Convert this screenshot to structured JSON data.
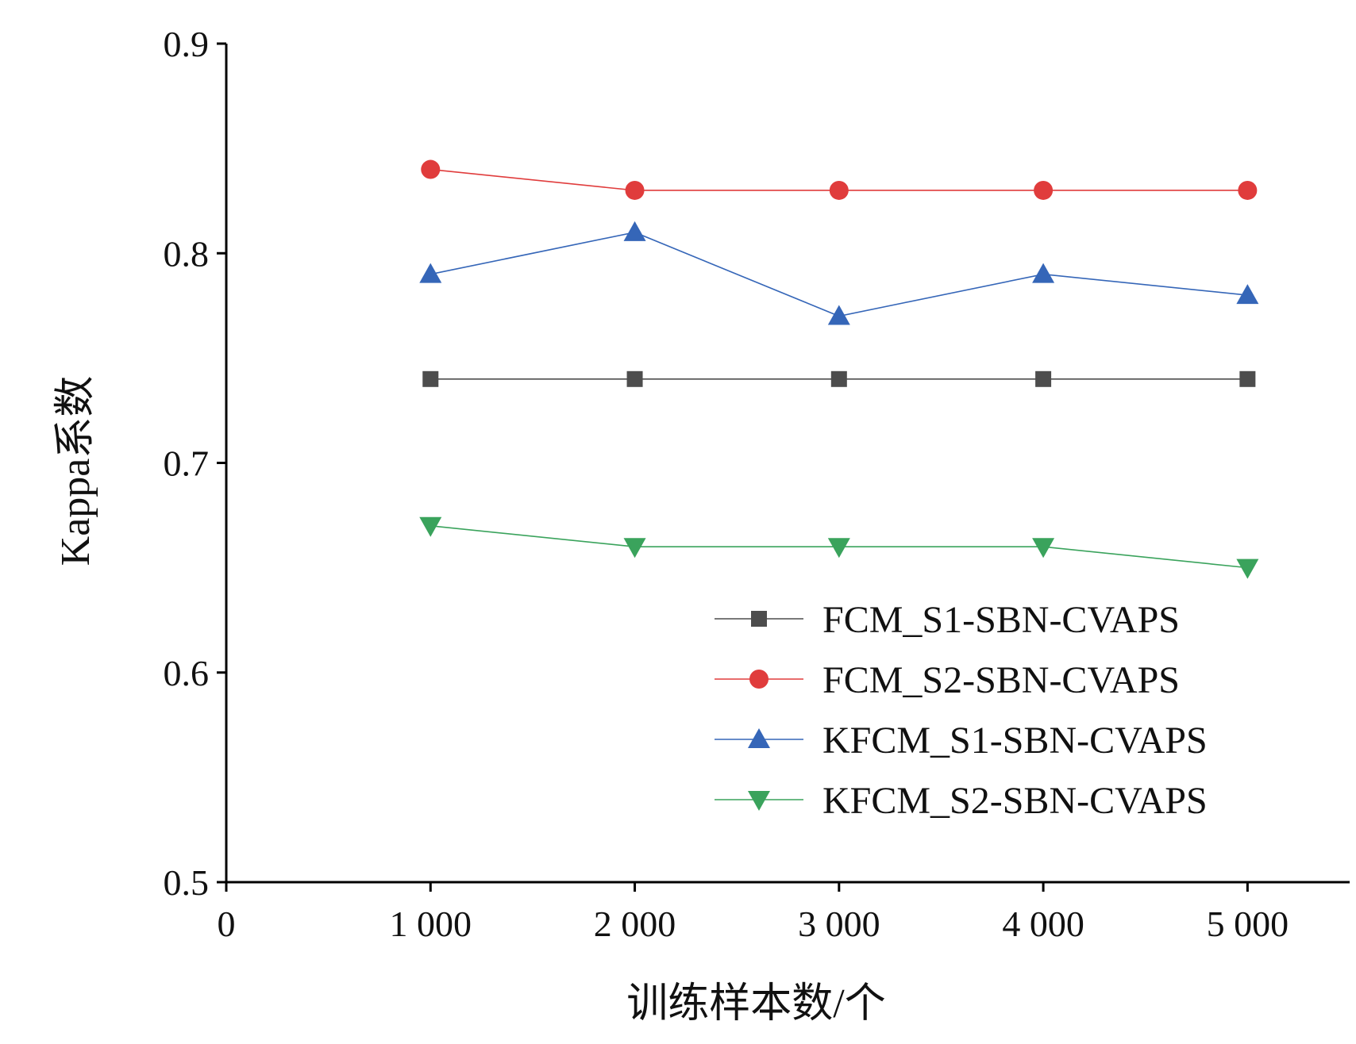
{
  "chart_data": {
    "type": "line",
    "title": "",
    "xlabel": "训练样本数/个",
    "ylabel": "Kappa系数",
    "xlim": [
      0,
      5500
    ],
    "ylim": [
      0.5,
      0.9
    ],
    "x": [
      1000,
      2000,
      3000,
      4000,
      5000
    ],
    "x_tick_values": [
      0,
      1000,
      2000,
      3000,
      4000,
      5000
    ],
    "x_tick_labels": [
      "0",
      "1 000",
      "2 000",
      "3 000",
      "4 000",
      "5 000"
    ],
    "y_tick_values": [
      0.5,
      0.6,
      0.7,
      0.8,
      0.9
    ],
    "y_tick_labels": [
      "0.5",
      "0.6",
      "0.7",
      "0.8",
      "0.9"
    ],
    "grid": false,
    "legend_position": "lower-right",
    "series": [
      {
        "name": "FCM_S1-SBN-CVAPS",
        "values": [
          0.74,
          0.74,
          0.74,
          0.74,
          0.74
        ],
        "color": "#4d4d4d",
        "marker": "square"
      },
      {
        "name": "FCM_S2-SBN-CVAPS",
        "values": [
          0.84,
          0.83,
          0.83,
          0.83,
          0.83
        ],
        "color": "#e03c3c",
        "marker": "circle"
      },
      {
        "name": "KFCM_S1-SBN-CVAPS",
        "values": [
          0.79,
          0.81,
          0.77,
          0.79,
          0.78
        ],
        "color": "#3566b8",
        "marker": "triangle-up"
      },
      {
        "name": "KFCM_S2-SBN-CVAPS",
        "values": [
          0.67,
          0.66,
          0.66,
          0.66,
          0.65
        ],
        "color": "#3aa35c",
        "marker": "triangle-down"
      }
    ]
  }
}
